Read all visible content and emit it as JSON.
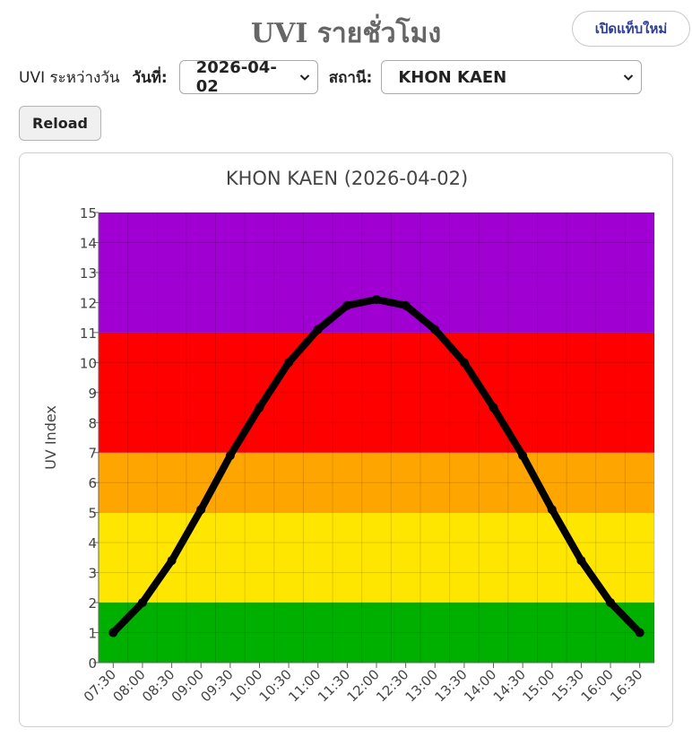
{
  "header": {
    "title": "UVI รายชั่วโมง",
    "new_tab_label": "เปิดแท็บใหม่"
  },
  "controls": {
    "daily_label": "UVI ระหว่างวัน",
    "date_label": "วันที่:",
    "date_value": "2026-04-02",
    "station_label": "สถานี:",
    "station_value": "KHON KAEN",
    "reload_label": "Reload"
  },
  "chart_data": {
    "type": "line",
    "title": "KHON KAEN (2026-04-02)",
    "ylabel": "UV Index",
    "xlabel": "",
    "ylim": [
      0,
      15
    ],
    "yticks": [
      0,
      1,
      2,
      3,
      4,
      5,
      6,
      7,
      8,
      9,
      10,
      11,
      12,
      13,
      14,
      15
    ],
    "categories": [
      "07:30",
      "08:00",
      "08:30",
      "09:00",
      "09:30",
      "10:00",
      "10:30",
      "11:00",
      "11:30",
      "12:00",
      "12:30",
      "13:00",
      "13:30",
      "14:00",
      "14:30",
      "15:00",
      "15:30",
      "16:00",
      "16:30"
    ],
    "series": [
      {
        "values": [
          1.0,
          2.0,
          3.4,
          5.1,
          6.9,
          8.5,
          10.0,
          11.1,
          11.9,
          12.1,
          11.9,
          11.1,
          10.0,
          8.5,
          6.9,
          5.1,
          3.4,
          2.0,
          1.0
        ],
        "color": "#000000"
      }
    ],
    "bands": [
      {
        "from": 0,
        "to": 2,
        "color": "#00b000"
      },
      {
        "from": 2,
        "to": 5,
        "color": "#ffe600"
      },
      {
        "from": 5,
        "to": 7,
        "color": "#ffa500"
      },
      {
        "from": 7,
        "to": 11,
        "color": "#ff0000"
      },
      {
        "from": 11,
        "to": 15,
        "color": "#a000d2"
      }
    ],
    "grid": true,
    "legend": "none"
  }
}
